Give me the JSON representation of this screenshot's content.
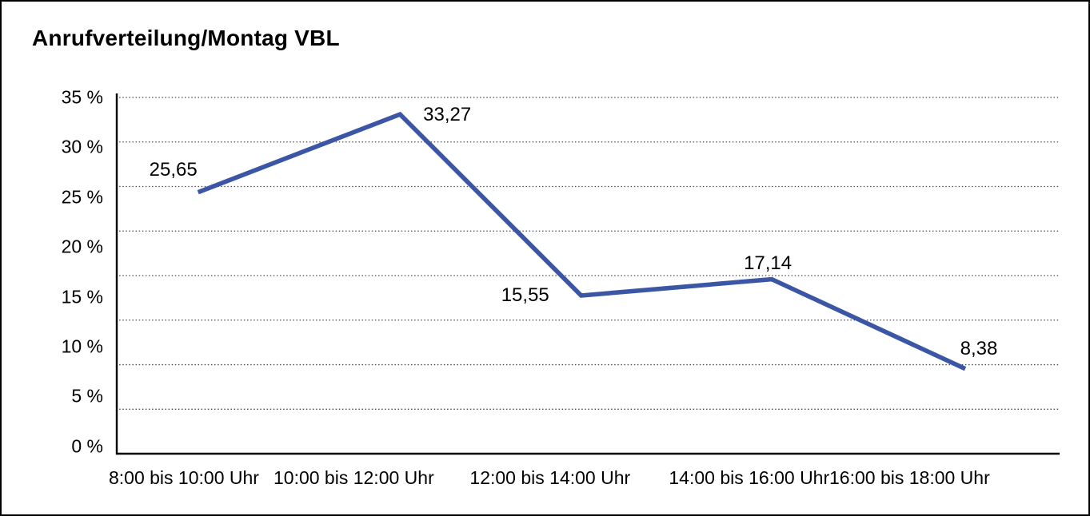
{
  "chart_data": {
    "type": "line",
    "title": "Anrufverteilung/Montag VBL",
    "categories": [
      "8:00 bis 10:00 Uhr",
      "10:00 bis 12:00 Uhr",
      "12:00 bis 14:00 Uhr",
      "14:00 bis 16:00 Uhr",
      "16:00 bis 18:00 Uhr"
    ],
    "series": [
      {
        "name": "Anrufverteilung Montag VBL",
        "values": [
          25.65,
          33.27,
          15.55,
          17.14,
          8.38
        ]
      }
    ],
    "point_labels": [
      "25,65",
      "33,27",
      "15,55",
      "17,14",
      "8,38"
    ],
    "y_ticks": [
      "35 %",
      "30 %",
      "25 %",
      "20 %",
      "15 %",
      "10 %",
      "5 %",
      "0 %"
    ],
    "ylim": [
      0,
      35
    ],
    "xlabel": "",
    "ylabel": "",
    "decimal_separator": ",",
    "legend": "none",
    "grid": "horizontal-dotted",
    "colors": {
      "line": "#3B56A4",
      "gridline": "#4a4a4a",
      "axis": "#000000",
      "text": "#000000",
      "background": "#ffffff"
    }
  }
}
